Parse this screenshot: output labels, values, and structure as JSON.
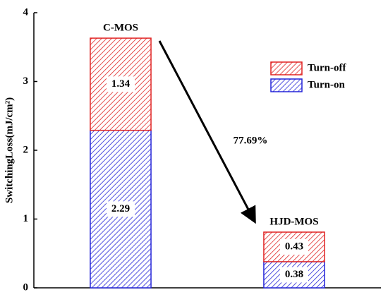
{
  "chart_data": {
    "type": "stacked-bar",
    "y_label": "SwitchingLoss(mJ/cm²)",
    "categories": [
      null,
      null
    ],
    "series": [
      {
        "name": "Turn-on",
        "color": "#2424d8",
        "values": [
          2.29,
          0.38
        ]
      },
      {
        "name": "Turn-off",
        "color": "#e02424",
        "values": [
          1.34,
          0.43
        ]
      }
    ],
    "ylim": [
      0,
      4
    ],
    "yticks": [
      0,
      1,
      2,
      3,
      4
    ],
    "bar_annotations": [
      "C-MOS",
      "HJD-MOS"
    ],
    "arrow_annotation": "77.69%",
    "legend": "upper-right"
  }
}
